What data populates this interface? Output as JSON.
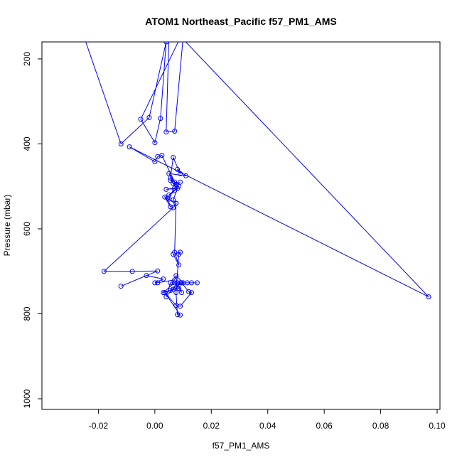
{
  "chart_data": {
    "type": "scatter",
    "title": "ATOM1 Northeast_Pacific f57_PM1_AMS",
    "xlabel": "f57_PM1_AMS",
    "ylabel": "Pressure (mbar)",
    "xlim": [
      -0.04,
      0.101
    ],
    "ylim": [
      1025,
      160
    ],
    "y_reversed": true,
    "xticks": [
      -0.02,
      0.0,
      0.02,
      0.04,
      0.06,
      0.08,
      0.1
    ],
    "xtick_labels": [
      "-0.02",
      "0.00",
      "0.02",
      "0.04",
      "0.06",
      "0.08",
      "0.10"
    ],
    "yticks": [
      200,
      400,
      600,
      800,
      1000
    ],
    "ytick_labels": [
      "200",
      "400",
      "600",
      "800",
      "1000"
    ],
    "line_color": "#0000ff",
    "marker": "open-circle",
    "grid": false,
    "x": [
      -0.025,
      -0.012,
      -0.002,
      0.004,
      0.002,
      0.0,
      -0.005,
      0.009,
      0.01,
      0.007,
      0.004,
      0.005,
      0.002,
      0.006,
      0.008,
      0.0095,
      0.097,
      -0.009,
      0.0,
      0.001,
      0.0025,
      0.007,
      0.005,
      0.011,
      0.008,
      0.009,
      0.0065,
      0.0055,
      0.0065,
      0.0055,
      0.0075,
      0.007,
      0.004,
      0.008,
      0.0065,
      0.0075,
      0.0065,
      -0.018,
      -0.008,
      0.001,
      -0.012,
      -0.003,
      0.003,
      0.0,
      0.001,
      0.007,
      0.0075,
      0.01,
      0.0115,
      0.013,
      0.015,
      0.009,
      0.0055,
      0.004,
      0.008,
      0.0095,
      0.0085,
      0.007,
      0.003,
      0.0065,
      0.0085,
      0.0055,
      0.0095,
      0.012,
      0.013,
      0.009,
      0.0075,
      0.0035,
      0.009,
      0.008,
      0.0075,
      0.0085,
      0.009,
      0.0065,
      0.0085,
      0.007,
      0.0075,
      0.005,
      0.0035,
      0.0055,
      0.0045,
      0.007,
      0.005,
      0.0085,
      0.0075,
      0.009
    ],
    "y": [
      150,
      400,
      338,
      160,
      340,
      397,
      342,
      150,
      150,
      370,
      372,
      150,
      150,
      150,
      150,
      150,
      760,
      407,
      442,
      430,
      427,
      490,
      470,
      475,
      460,
      470,
      432,
      480,
      493,
      486,
      496,
      504,
      507,
      505,
      532,
      540,
      550,
      700,
      700,
      699,
      735,
      710,
      718,
      727,
      727,
      720,
      710,
      727,
      727,
      727,
      727,
      727,
      727,
      760,
      727,
      750,
      740,
      727,
      750,
      742,
      740,
      745,
      727,
      748,
      750,
      782,
      780,
      750,
      803,
      802,
      750,
      660,
      655,
      660,
      685,
      655,
      540,
      530,
      525,
      548,
      527,
      510,
      520,
      500,
      495,
      490
    ]
  }
}
